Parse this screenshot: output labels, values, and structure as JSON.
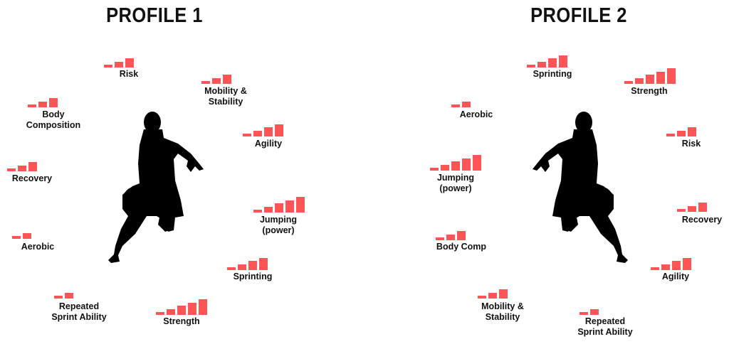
{
  "accent_color": "#fe5455",
  "profiles": [
    {
      "title": "PROFILE 1",
      "items": [
        {
          "label": "Risk",
          "level": 3
        },
        {
          "label": "Mobility &\nStability",
          "level": 3
        },
        {
          "label": "Body\nComposition",
          "level": 3
        },
        {
          "label": "Agility",
          "level": 4
        },
        {
          "label": "Recovery",
          "level": 3
        },
        {
          "label": "Jumping\n(power)",
          "level": 5
        },
        {
          "label": "Aerobic",
          "level": 2
        },
        {
          "label": "Sprinting",
          "level": 4
        },
        {
          "label": "Repeated\nSprint Ability",
          "level": 2
        },
        {
          "label": "Strength",
          "level": 5
        }
      ]
    },
    {
      "title": "PROFILE 2",
      "items": [
        {
          "label": "Sprinting",
          "level": 4
        },
        {
          "label": "Strength",
          "level": 5
        },
        {
          "label": "Aerobic",
          "level": 2
        },
        {
          "label": "Risk",
          "level": 3
        },
        {
          "label": "Jumping\n(power)",
          "level": 5
        },
        {
          "label": "Recovery",
          "level": 3
        },
        {
          "label": "Body Comp",
          "level": 3
        },
        {
          "label": "Agility",
          "level": 4
        },
        {
          "label": "Mobility &\nStability",
          "level": 3
        },
        {
          "label": "Repeated\nSprint Ability",
          "level": 2
        }
      ]
    }
  ]
}
